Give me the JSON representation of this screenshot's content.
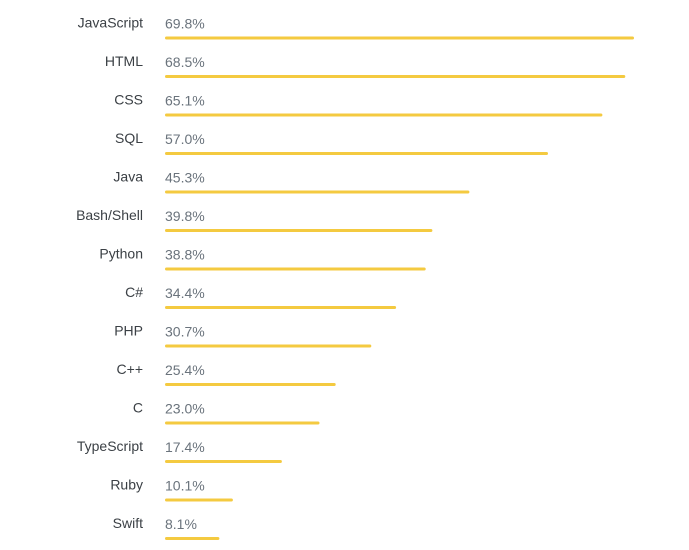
{
  "chart_data": {
    "type": "bar",
    "orientation": "horizontal",
    "categories": [
      "JavaScript",
      "HTML",
      "CSS",
      "SQL",
      "Java",
      "Bash/Shell",
      "Python",
      "C#",
      "PHP",
      "C++",
      "C",
      "TypeScript",
      "Ruby",
      "Swift"
    ],
    "values": [
      69.8,
      68.5,
      65.1,
      57.0,
      45.3,
      39.8,
      38.8,
      34.4,
      30.7,
      25.4,
      23.0,
      17.4,
      10.1,
      8.1
    ],
    "value_labels": [
      "69.8%",
      "68.5%",
      "65.1%",
      "57.0%",
      "45.3%",
      "39.8%",
      "38.8%",
      "34.4%",
      "30.7%",
      "25.4%",
      "23.0%",
      "17.4%",
      "10.1%",
      "8.1%"
    ],
    "unit": "%",
    "title": "",
    "xlabel": "",
    "ylabel": "",
    "xlim": [
      0,
      69.8
    ],
    "grid": false,
    "legend": "none",
    "colors": {
      "bar": "#f4ca40",
      "category_text": "#3b4045",
      "value_text": "#6a737c"
    }
  }
}
